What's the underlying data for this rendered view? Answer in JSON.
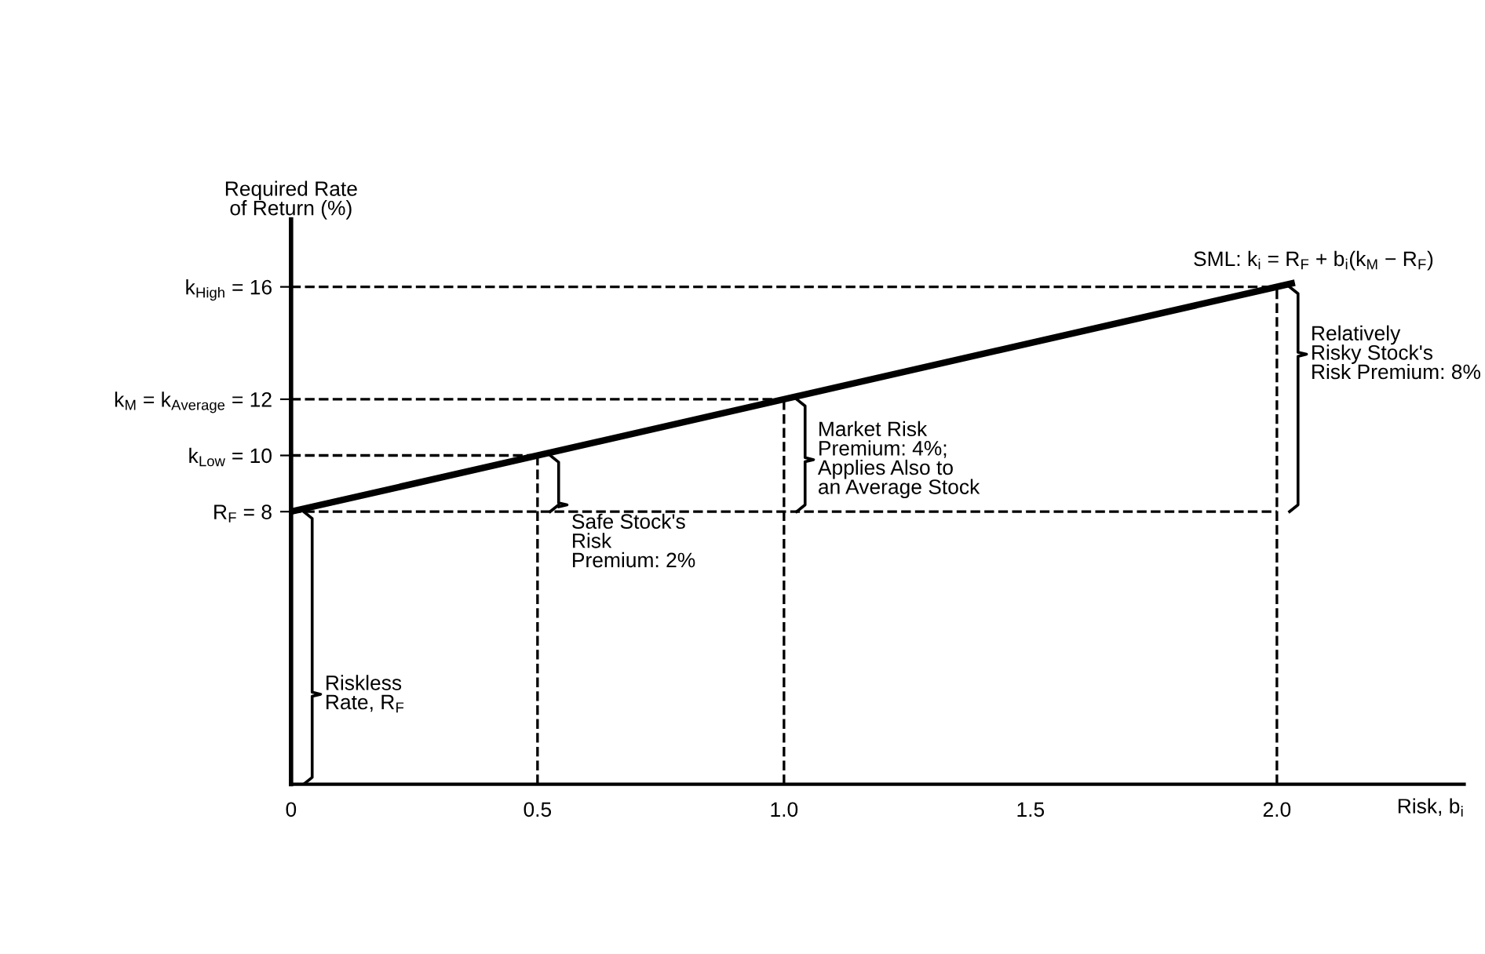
{
  "chart_data": {
    "type": "line",
    "ylabel": "Required Rate\nof Return (%)",
    "xlabel": "Risk, b$_{i}$",
    "x": [
      0,
      2.03
    ],
    "series": [
      {
        "color": "#000000",
        "values": [
          8,
          16.12
        ]
      }
    ],
    "xlim": [
      0,
      2.38
    ],
    "ylim": [
      -1.7,
      18.4
    ],
    "xticks": [
      0,
      0.5,
      {
        "value": 1.0,
        "label": "1.0"
      },
      1.5,
      {
        "value": 2.0,
        "label": "2.0"
      }
    ],
    "yticks": [
      {
        "value": 8,
        "label": "R$_{F}$ = 8"
      },
      {
        "value": 10,
        "label": "k$_{Low}$ = 10"
      },
      {
        "value": 12,
        "label": "k$_{M}$ = k$_{Average}$ = 12"
      },
      {
        "value": 16,
        "label": "k$_{High}$ = 16"
      }
    ],
    "ref_lines": [
      {
        "axis": "y",
        "value": 8,
        "line_style": "dashed"
      },
      {
        "axis": "y",
        "value": 10,
        "line_style": "dashed"
      },
      {
        "axis": "y",
        "value": 12,
        "line_style": "dashed"
      },
      {
        "axis": "y",
        "value": 16,
        "line_style": "dashed"
      },
      {
        "axis": "x",
        "value": 0.5,
        "line_style": "dashed"
      },
      {
        "axis": "x",
        "value": 1.0,
        "line_style": "dashed"
      },
      {
        "axis": "x",
        "value": 2.0,
        "line_style": "dashed"
      }
    ],
    "annotations": [
      "SML: k$_{i}$ = R$_{F}$ + b$_{i}$(k$_{M}$ − R$_{F}$)",
      "Riskless\nRate, R$_{F}$",
      {
        "text": "Safe Stock's\nRisk\nPremium: 2%",
        "x": 0.5,
        "y": 6.9
      },
      {
        "text": "Market Risk\nPremium: 4%;\nApplies Also to\nan Average Stock",
        "x": 1.0,
        "y": 9.85
      },
      {
        "text": "Relatively\nRisky Stock's\nRisk Premium: 8%",
        "x": 2.0,
        "y": 13.6
      }
    ],
    "grid": false,
    "legend": false,
    "marker": "none",
    "line_style": "solid"
  }
}
